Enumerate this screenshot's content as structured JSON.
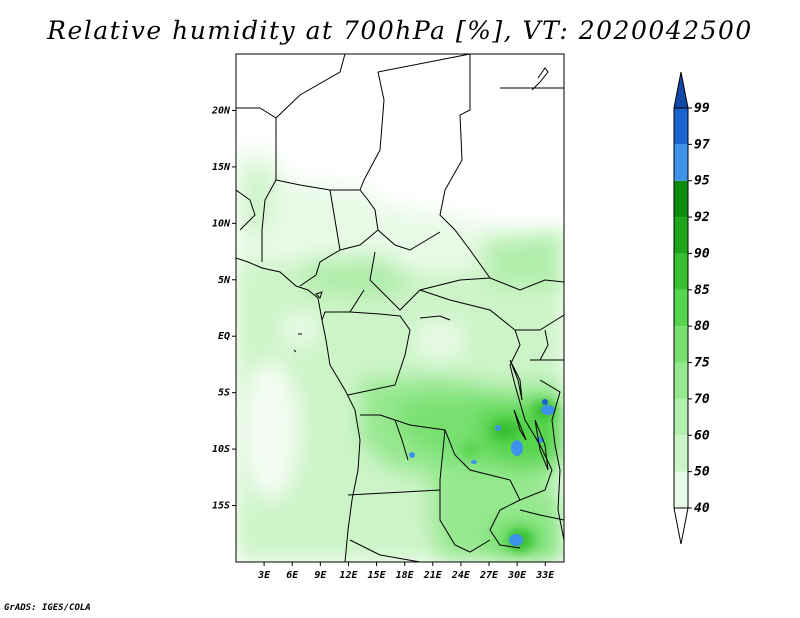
{
  "title": "Relative humidity at 700hPa [%], VT: 2020042500",
  "credit": "GrADS: IGES/COLA",
  "map": {
    "lon_range": [
      0,
      35
    ],
    "lat_range": [
      -20,
      25
    ],
    "lon_ticks": [
      "3E",
      "6E",
      "9E",
      "12E",
      "15E",
      "18E",
      "21E",
      "24E",
      "27E",
      "30E",
      "33E"
    ],
    "lon_values": [
      3,
      6,
      9,
      12,
      15,
      18,
      21,
      24,
      27,
      30,
      33
    ],
    "lat_ticks": [
      "20N",
      "15N",
      "10N",
      "5N",
      "EQ",
      "5S",
      "10S",
      "15S"
    ],
    "lat_values": [
      20,
      15,
      10,
      5,
      0,
      -5,
      -10,
      -15
    ]
  },
  "colorbar": {
    "levels": [
      "40",
      "50",
      "60",
      "70",
      "75",
      "80",
      "85",
      "90",
      "92",
      "95",
      "97",
      "99"
    ],
    "colors": [
      "#ffffff",
      "#e8fae6",
      "#cdf4c8",
      "#b2eeac",
      "#96e88f",
      "#78e071",
      "#56d44e",
      "#38c030",
      "#1ea61a",
      "#0f8c0c",
      "#3d93ea",
      "#1a64d0",
      "#1248a8"
    ]
  }
}
